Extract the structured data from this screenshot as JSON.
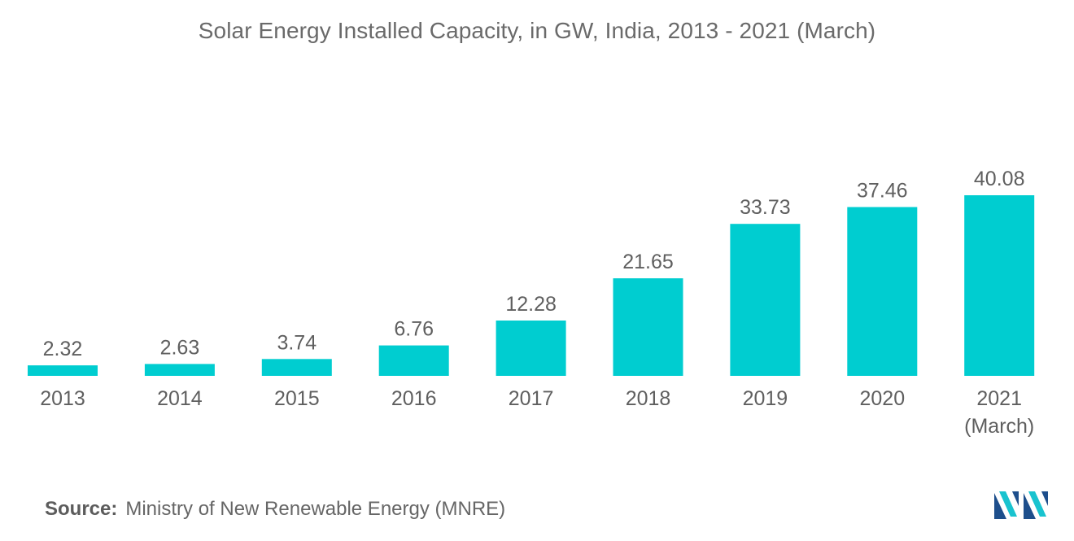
{
  "colors": {
    "bar": "#00CDD0",
    "text": "#5f5f5f",
    "logo_dark": "#1e4f8c",
    "logo_light": "#19c3cf"
  },
  "chart_data": {
    "type": "bar",
    "title": "Solar Energy Installed Capacity, in GW, India, 2013 - 2021 (March)",
    "xlabel": "",
    "ylabel": "",
    "unit": "GW",
    "ylim": [
      0,
      40.08
    ],
    "grid": false,
    "legend": "none",
    "categories": [
      [
        "2013"
      ],
      [
        "2014"
      ],
      [
        "2015"
      ],
      [
        "2016"
      ],
      [
        "2017"
      ],
      [
        "2018"
      ],
      [
        "2019"
      ],
      [
        "2020"
      ],
      [
        "2021",
        "(March)"
      ]
    ],
    "values": [
      2.32,
      2.63,
      3.74,
      6.76,
      12.28,
      21.65,
      33.73,
      37.46,
      40.08
    ],
    "value_labels": [
      "2.32",
      "2.63",
      "3.74",
      "6.76",
      "12.28",
      "21.65",
      "33.73",
      "37.46",
      "40.08"
    ]
  },
  "source": {
    "label": "Source:",
    "text": "Ministry of New Renewable Energy (MNRE)"
  },
  "logo": {
    "icon": "mordor-intelligence-logo-icon"
  }
}
